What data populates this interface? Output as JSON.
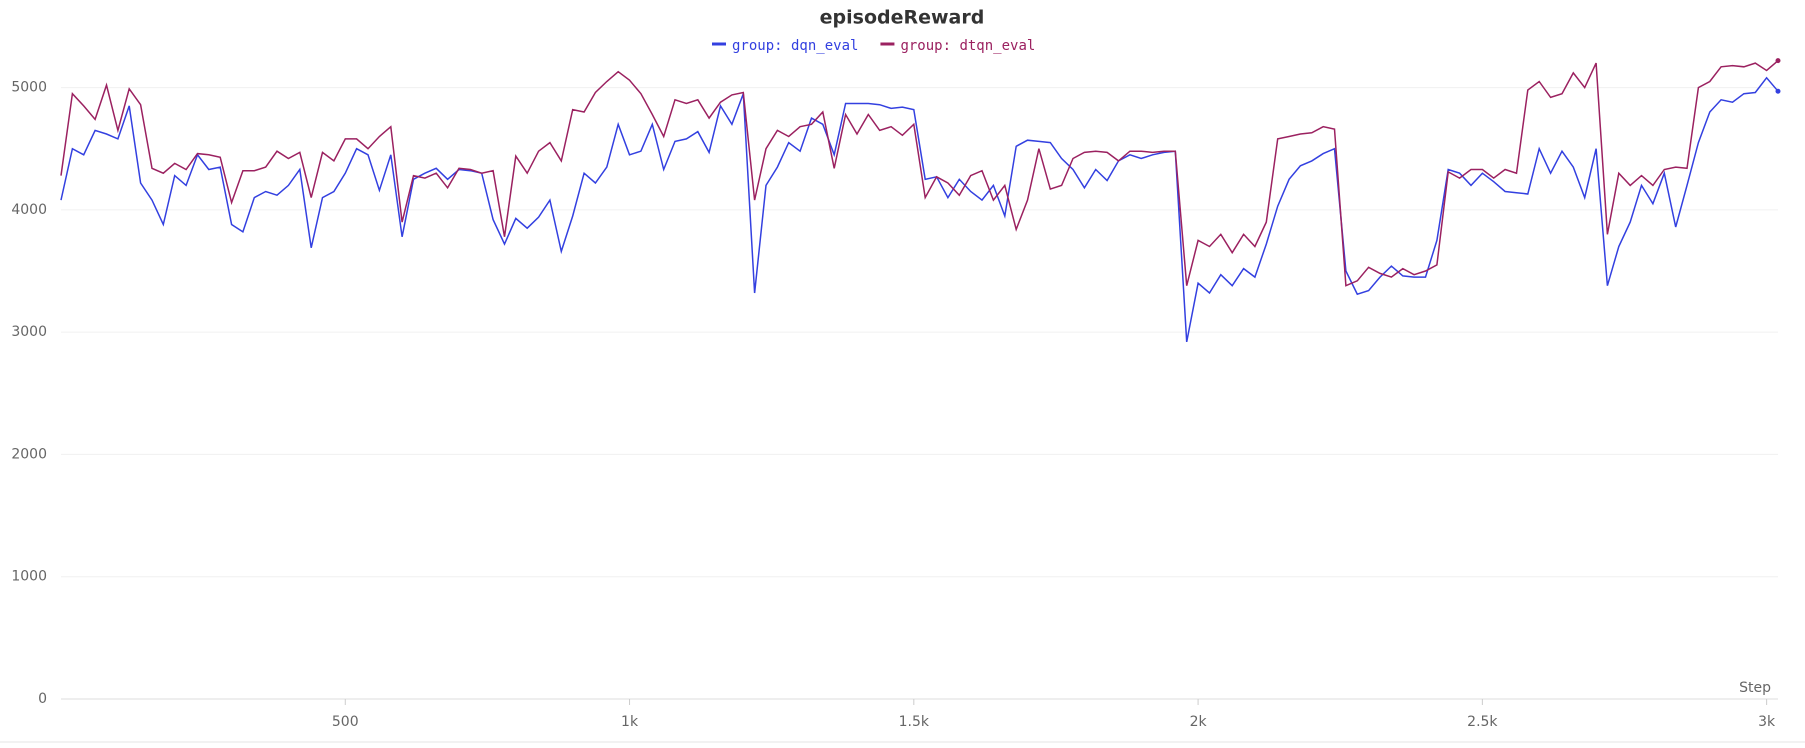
{
  "chart_data": {
    "type": "line",
    "title": "episodeReward",
    "x_label": "Step",
    "x": [
      0,
      20,
      40,
      60,
      80,
      100,
      120,
      140,
      160,
      180,
      200,
      220,
      240,
      260,
      280,
      300,
      320,
      340,
      360,
      380,
      400,
      420,
      440,
      460,
      480,
      500,
      520,
      540,
      560,
      580,
      600,
      620,
      640,
      660,
      680,
      700,
      720,
      740,
      760,
      780,
      800,
      820,
      840,
      860,
      880,
      900,
      920,
      940,
      960,
      980,
      1000,
      1020,
      1040,
      1060,
      1080,
      1100,
      1120,
      1140,
      1160,
      1180,
      1200,
      1220,
      1240,
      1260,
      1280,
      1300,
      1320,
      1340,
      1360,
      1380,
      1400,
      1420,
      1440,
      1460,
      1480,
      1500,
      1520,
      1540,
      1560,
      1580,
      1600,
      1620,
      1640,
      1660,
      1680,
      1700,
      1720,
      1740,
      1760,
      1780,
      1800,
      1820,
      1840,
      1860,
      1880,
      1900,
      1920,
      1940,
      1960,
      1980,
      2000,
      2020,
      2040,
      2060,
      2080,
      2100,
      2120,
      2140,
      2160,
      2180,
      2200,
      2220,
      2240,
      2260,
      2280,
      2300,
      2320,
      2340,
      2360,
      2380,
      2400,
      2420,
      2440,
      2460,
      2480,
      2500,
      2520,
      2540,
      2560,
      2580,
      2600,
      2620,
      2640,
      2660,
      2680,
      2700,
      2720,
      2740,
      2760,
      2780,
      2800,
      2820,
      2840,
      2860,
      2880,
      2900,
      2920,
      2940,
      2960,
      2980,
      3000,
      3020
    ],
    "series": [
      {
        "name": "group: dqn_eval",
        "color": "#3340e0",
        "values": [
          4080,
          4500,
          4450,
          4650,
          4620,
          4580,
          4850,
          4220,
          4080,
          3880,
          4280,
          4200,
          4450,
          4330,
          4350,
          3880,
          3820,
          4100,
          4150,
          4120,
          4200,
          4330,
          3690,
          4100,
          4150,
          4300,
          4500,
          4450,
          4160,
          4450,
          3780,
          4250,
          4300,
          4340,
          4250,
          4330,
          4320,
          4300,
          3920,
          3720,
          3930,
          3850,
          3940,
          4080,
          3660,
          3950,
          4300,
          4220,
          4350,
          4700,
          4450,
          4480,
          4700,
          4330,
          4560,
          4580,
          4640,
          4470,
          4850,
          4700,
          4950,
          3320,
          4200,
          4350,
          4550,
          4480,
          4750,
          4700,
          4450,
          4870,
          4870,
          4870,
          4860,
          4830,
          4840,
          4820,
          4250,
          4270,
          4100,
          4250,
          4150,
          4080,
          4200,
          3950,
          4520,
          4570,
          4560,
          4550,
          4420,
          4330,
          4180,
          4330,
          4240,
          4400,
          4450,
          4420,
          4450,
          4470,
          4480,
          2920,
          3400,
          3320,
          3470,
          3380,
          3520,
          3450,
          3720,
          4030,
          4250,
          4360,
          4400,
          4460,
          4500,
          3500,
          3310,
          3340,
          3450,
          3540,
          3460,
          3450,
          3450,
          3750,
          4330,
          4300,
          4200,
          4300,
          4230,
          4150,
          4140,
          4130,
          4500,
          4300,
          4480,
          4350,
          4100,
          4500,
          3380,
          3700,
          3900,
          4200,
          4050,
          4300,
          3860,
          4200,
          4550,
          4800,
          4900,
          4880,
          4950,
          4960,
          5080,
          4970
        ]
      },
      {
        "name": "group: dtqn_eval",
        "color": "#9b2160",
        "values": [
          4280,
          4950,
          4850,
          4740,
          5020,
          4650,
          4990,
          4860,
          4340,
          4300,
          4380,
          4330,
          4460,
          4450,
          4430,
          4060,
          4320,
          4320,
          4350,
          4480,
          4420,
          4470,
          4100,
          4470,
          4400,
          4580,
          4580,
          4500,
          4600,
          4680,
          3900,
          4280,
          4260,
          4300,
          4180,
          4340,
          4330,
          4300,
          4320,
          3780,
          4440,
          4300,
          4480,
          4550,
          4400,
          4820,
          4800,
          4960,
          5050,
          5130,
          5060,
          4950,
          4780,
          4600,
          4900,
          4870,
          4900,
          4750,
          4880,
          4940,
          4960,
          4080,
          4500,
          4650,
          4600,
          4680,
          4700,
          4800,
          4340,
          4780,
          4620,
          4780,
          4650,
          4680,
          4610,
          4700,
          4100,
          4270,
          4220,
          4120,
          4280,
          4320,
          4080,
          4200,
          3840,
          4080,
          4500,
          4170,
          4200,
          4420,
          4470,
          4480,
          4470,
          4400,
          4480,
          4480,
          4470,
          4480,
          4480,
          3380,
          3750,
          3700,
          3800,
          3650,
          3800,
          3700,
          3900,
          4580,
          4600,
          4620,
          4630,
          4680,
          4660,
          3380,
          3420,
          3530,
          3480,
          3450,
          3520,
          3470,
          3500,
          3550,
          4310,
          4260,
          4330,
          4330,
          4260,
          4330,
          4300,
          4980,
          5050,
          4920,
          4950,
          5120,
          5000,
          5200,
          3800,
          4300,
          4200,
          4280,
          4200,
          4330,
          4350,
          4340,
          5000,
          5050,
          5170,
          5180,
          5170,
          5200,
          5140,
          5220
        ]
      }
    ],
    "xlim": [
      0,
      3020
    ],
    "xticks": [
      {
        "value": 500,
        "label": "500"
      },
      {
        "value": 1000,
        "label": "1k"
      },
      {
        "value": 1500,
        "label": "1.5k"
      },
      {
        "value": 2000,
        "label": "2k"
      },
      {
        "value": 2500,
        "label": "2.5k"
      },
      {
        "value": 3000,
        "label": "3k"
      }
    ],
    "ylim": [
      0,
      5250
    ],
    "yticks": [
      0,
      1000,
      2000,
      3000,
      4000,
      5000
    ],
    "grid": true
  }
}
